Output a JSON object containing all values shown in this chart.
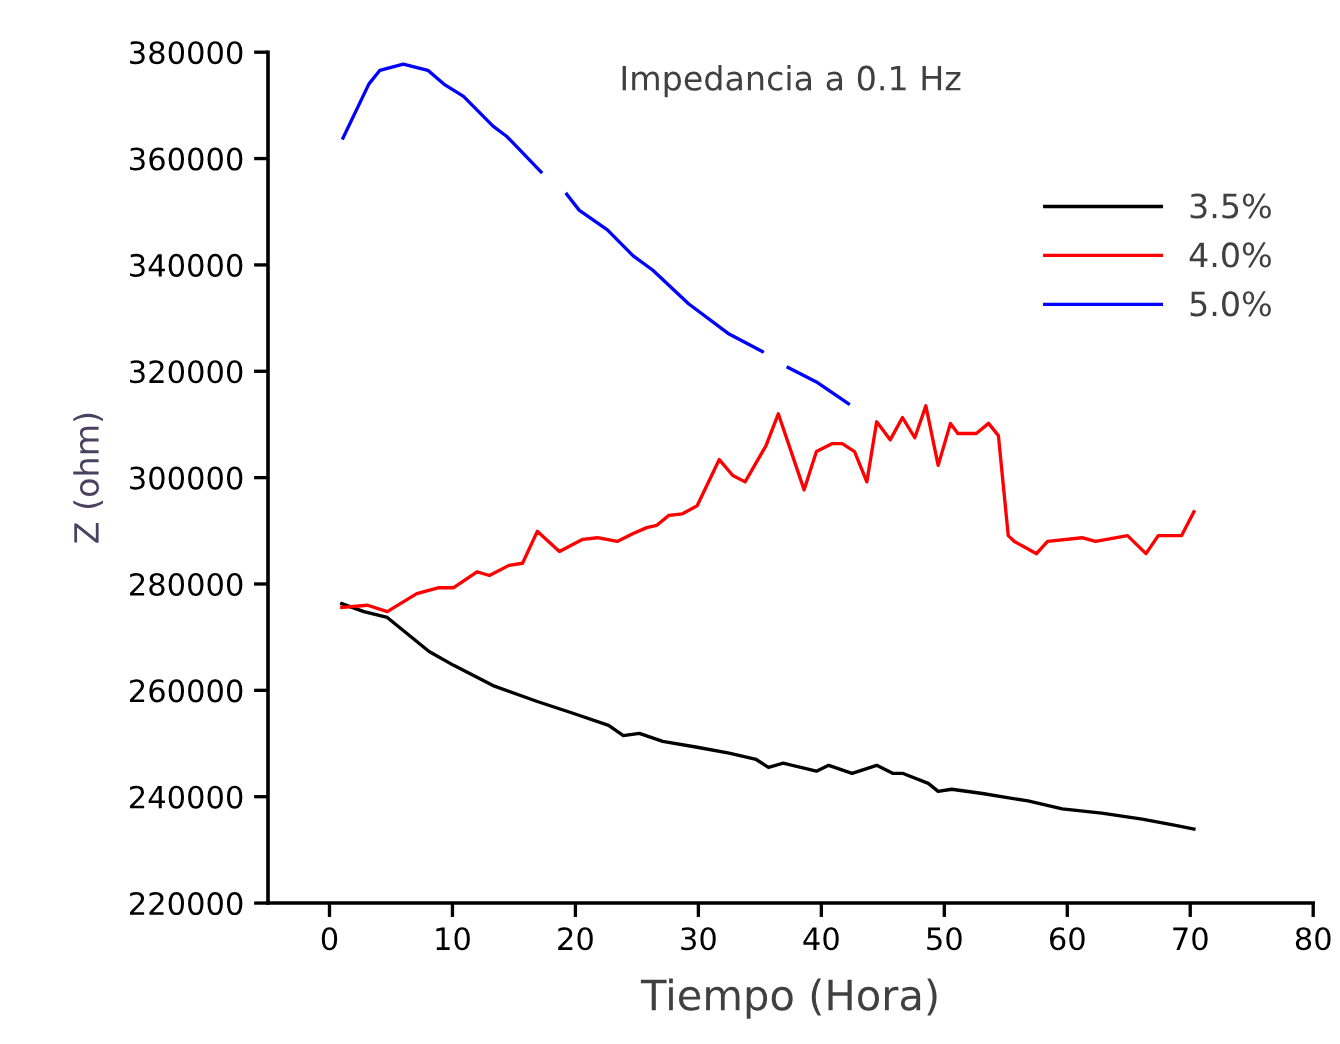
{
  "chart_data": {
    "type": "line",
    "title": "Impedancia a 0.1 Hz",
    "xlabel": "Tiempo (Hora)",
    "ylabel": "Z (ohm)",
    "xlim": [
      -5,
      80
    ],
    "xticks": [
      0,
      10,
      20,
      30,
      40,
      50,
      60,
      70,
      80
    ],
    "ylim": [
      220000,
      380000
    ],
    "yticks": [
      220000,
      240000,
      260000,
      280000,
      300000,
      320000,
      340000,
      360000,
      380000
    ],
    "grid": false,
    "legend": "top right",
    "marker": "none",
    "line_style": "solid",
    "series": [
      {
        "name": "3.5%",
        "color": "#000000",
        "x": [
          1.0,
          2.8,
          4.7,
          6.3,
          8.1,
          10.1,
          13.3,
          16.9,
          19.8,
          22.7,
          23.9,
          25.2,
          27.1,
          29.9,
          32.5,
          34.7,
          35.7,
          36.9,
          39.6,
          40.6,
          42.5,
          44.5,
          45.8,
          46.6,
          48.7,
          49.5,
          50.6,
          53.1,
          56.8,
          59.6,
          62.8,
          66.1,
          68.8,
          70.3
        ],
        "values": [
          276300,
          274800,
          273700,
          270700,
          267300,
          264700,
          260900,
          257900,
          255700,
          253400,
          251500,
          251900,
          250400,
          249300,
          248200,
          247000,
          245500,
          246300,
          244800,
          245900,
          244400,
          245900,
          244400,
          244400,
          242500,
          241000,
          241400,
          240600,
          239200,
          237700,
          236900,
          235800,
          234600,
          233900
        ]
      },
      {
        "name": "4.0%",
        "color": "#ff0000",
        "x": [
          1.0,
          3.1,
          4.7,
          7.1,
          8.9,
          10.1,
          12.0,
          13.0,
          14.6,
          15.7,
          16.9,
          18.7,
          20.6,
          21.8,
          23.4,
          24.7,
          25.8,
          26.6,
          27.6,
          28.7,
          29.9,
          31.7,
          32.8,
          33.8,
          35.5,
          36.5,
          38.6,
          39.6,
          40.9,
          41.7,
          42.7,
          43.7,
          44.5,
          45.6,
          46.6,
          47.6,
          48.5,
          49.5,
          50.5,
          51.1,
          52.6,
          53.6,
          54.4,
          55.2,
          55.7,
          57.5,
          58.4,
          61.2,
          62.3,
          64.9,
          66.4,
          67.4,
          69.3,
          70.3
        ],
        "values": [
          275600,
          276000,
          274800,
          278200,
          279300,
          279300,
          282300,
          281600,
          283500,
          283900,
          289900,
          286100,
          288400,
          288700,
          288000,
          289500,
          290600,
          291000,
          292900,
          293200,
          294700,
          303400,
          300400,
          299200,
          306000,
          312000,
          297700,
          304900,
          306400,
          306400,
          304900,
          299200,
          310500,
          307100,
          311300,
          307500,
          313500,
          302300,
          310200,
          308300,
          308300,
          310200,
          307900,
          289100,
          288000,
          285700,
          288000,
          288700,
          288000,
          289100,
          285700,
          289100,
          289100,
          293600
        ]
      },
      {
        "name": "5.0%",
        "color": "#0000ff",
        "x": [
          1.1,
          3.2,
          4.1,
          6.0,
          8.0,
          9.3,
          10.9,
          13.3,
          14.4,
          17.2,
          18.2,
          19.3,
          20.3,
          22.6,
          24.7,
          26.3,
          29.2,
          32.5,
          35.2,
          36.2,
          37.3,
          39.6,
          42.2
        ],
        "values": [
          363850,
          374000,
          376600,
          377750,
          376600,
          374000,
          371700,
          366100,
          364200,
          357500,
          null,
          353300,
          350300,
          346600,
          341700,
          339000,
          332700,
          327000,
          323700,
          null,
          320700,
          318000,
          313900
        ]
      }
    ]
  }
}
